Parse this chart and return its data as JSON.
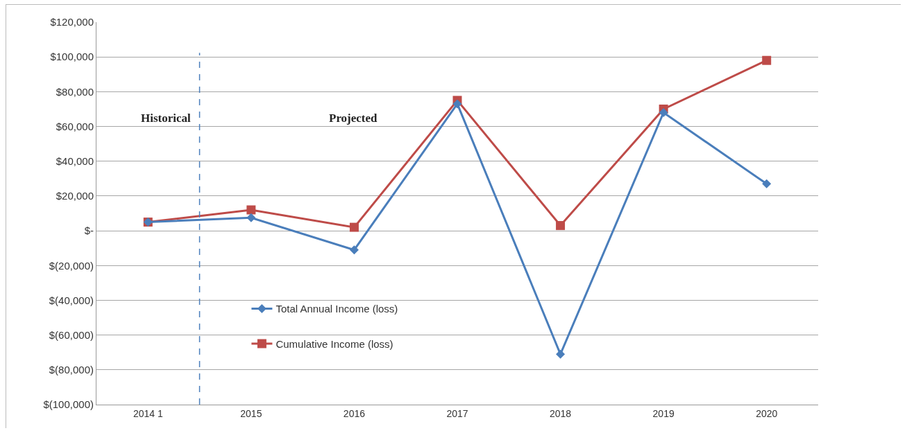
{
  "chart_data": {
    "type": "line",
    "x": [
      2014,
      2015,
      2016,
      2017,
      2018,
      2019,
      2020
    ],
    "series": [
      {
        "name": "Total Annual Income (loss)",
        "color": "#4a7ebb",
        "marker": "diamond",
        "values": [
          5000,
          7500,
          -11000,
          73000,
          -71000,
          68000,
          27000
        ]
      },
      {
        "name": "Cumulative Income (loss)",
        "color": "#be4b48",
        "marker": "square",
        "values": [
          5000,
          12000,
          2000,
          75000,
          3000,
          70000,
          98000
        ]
      }
    ],
    "xlim": [
      2013.5,
      2020.5
    ],
    "xticks": [
      {
        "value": 2014,
        "label": "2014 1"
      },
      2015,
      2016,
      2017,
      2018,
      2019,
      2020
    ],
    "ylim": [
      -100000,
      120000
    ],
    "yticks": [
      {
        "value": -100000,
        "label": "$(100,000)"
      },
      {
        "value": -80000,
        "label": "$(80,000)"
      },
      {
        "value": -60000,
        "label": "$(60,000)"
      },
      {
        "value": -40000,
        "label": "$(40,000)"
      },
      {
        "value": -20000,
        "label": "$(20,000)"
      },
      {
        "value": 0,
        "label": "$-"
      },
      {
        "value": 20000,
        "label": "$20,000"
      },
      {
        "value": 40000,
        "label": "$40,000"
      },
      {
        "value": 60000,
        "label": "$60,000"
      },
      {
        "value": 80000,
        "label": "$80,000"
      },
      {
        "value": 100000,
        "label": "$100,000"
      },
      {
        "value": 120000,
        "label": "$120,000"
      }
    ],
    "ref_lines": [
      {
        "axis": "x",
        "value": 2014.5,
        "label": null,
        "color": "#4a7ebb",
        "line_style": "dashed"
      }
    ],
    "annotations": [
      "Historical",
      "Projected"
    ],
    "grid": "y",
    "legend": "bottom left",
    "line_style": "solid"
  }
}
